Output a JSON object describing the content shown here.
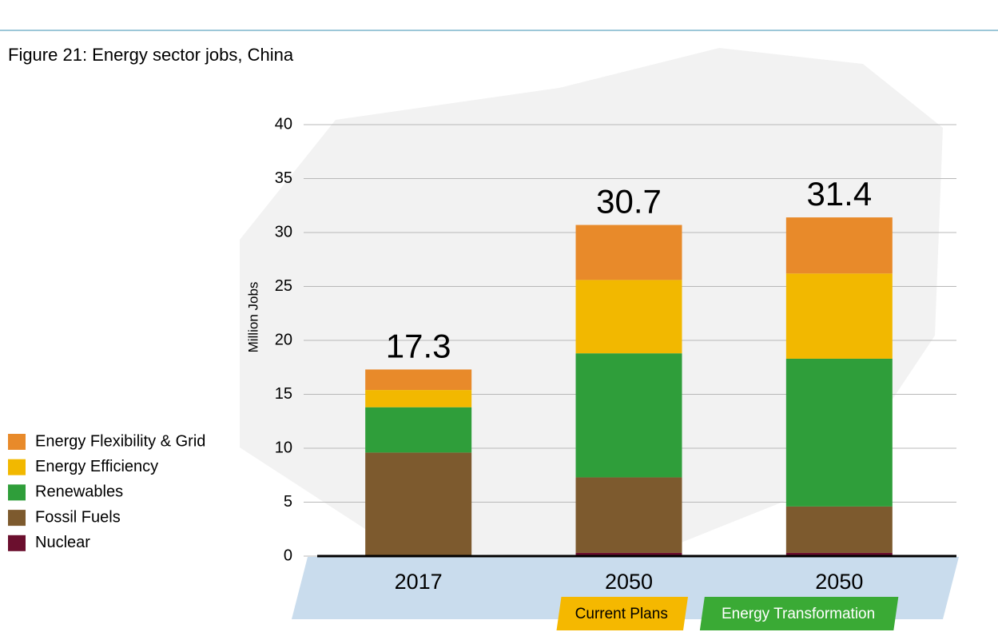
{
  "chart_data": {
    "type": "stacked-bar",
    "title": "Figure 21: Energy sector jobs, China",
    "y_label": "Million Jobs",
    "categories": [
      "2017",
      "2050",
      "2050"
    ],
    "scenarios": [
      null,
      "Current Plans",
      "Energy Transformation"
    ],
    "scenario_colors": [
      null,
      "#f5b800",
      "#3aaa35"
    ],
    "totals": [
      17.3,
      30.7,
      31.4
    ],
    "series": [
      {
        "name": "Nuclear",
        "color": "#6b0f2e",
        "values": [
          0,
          0.3,
          0.3
        ]
      },
      {
        "name": "Fossil Fuels",
        "color": "#7d5a2e",
        "values": [
          9.6,
          7.0,
          4.3
        ]
      },
      {
        "name": "Renewables",
        "color": "#2f9e3a",
        "values": [
          4.2,
          11.5,
          13.7
        ]
      },
      {
        "name": "Energy Efficiency",
        "color": "#f2b800",
        "values": [
          1.6,
          6.8,
          7.9
        ]
      },
      {
        "name": "Energy Flexibility & Grid",
        "color": "#e88a2a",
        "values": [
          1.9,
          5.1,
          5.2
        ]
      }
    ],
    "ylim": [
      0,
      40
    ],
    "yticks": [
      0,
      5,
      10,
      15,
      20,
      25,
      30,
      35,
      40
    ],
    "grid": true,
    "legend": "left"
  }
}
